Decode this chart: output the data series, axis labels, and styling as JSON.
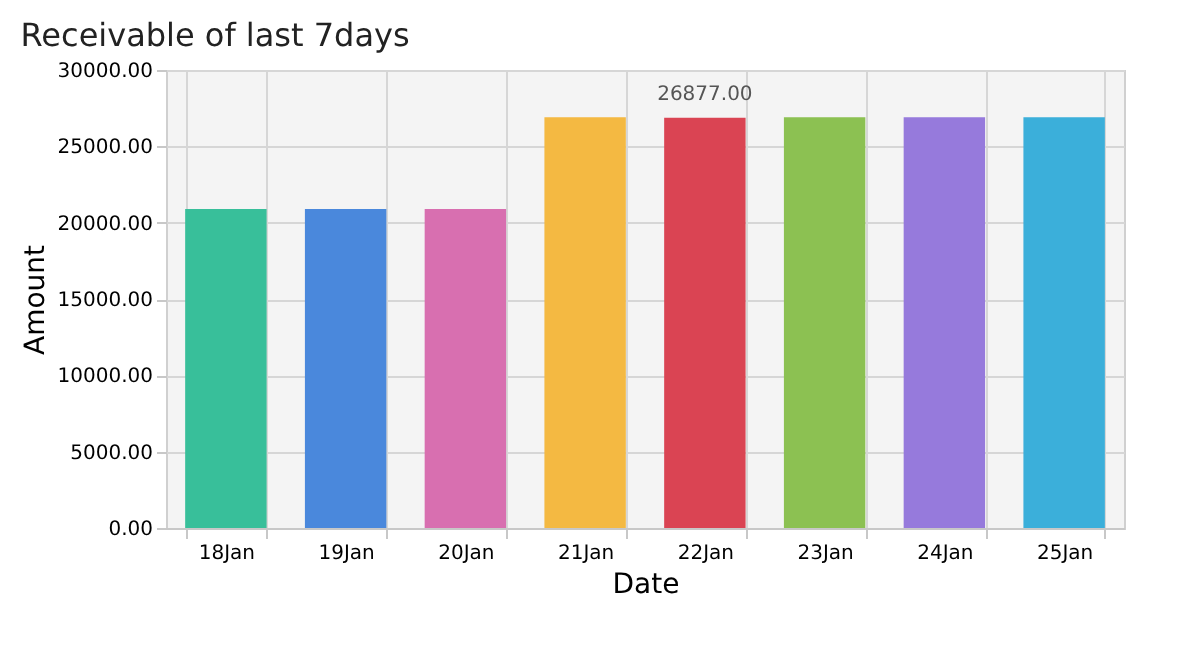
{
  "chart_data": {
    "type": "bar",
    "title": "Receivable of last 7days",
    "xlabel": "Date",
    "ylabel": "Amount",
    "categories": [
      "18Jan",
      "19Jan",
      "20Jan",
      "21Jan",
      "22Jan",
      "23Jan",
      "24Jan",
      "25Jan"
    ],
    "values": [
      20900,
      20900,
      20900,
      26900,
      26877,
      26900,
      26900,
      26900
    ],
    "colors": [
      "#38bf9a",
      "#4a88dc",
      "#d86fb0",
      "#f4b942",
      "#da4453",
      "#8cc152",
      "#967adc",
      "#3bafda"
    ],
    "value_labels": [
      null,
      null,
      null,
      null,
      "26877.00",
      null,
      null,
      null
    ],
    "ylim": [
      0,
      30000
    ],
    "yticks": [
      {
        "value": 0,
        "label": "0.00"
      },
      {
        "value": 5000,
        "label": "5000.00"
      },
      {
        "value": 10000,
        "label": "10000.00"
      },
      {
        "value": 15000,
        "label": "15000.00"
      },
      {
        "value": 20000,
        "label": "20000.00"
      },
      {
        "value": 25000,
        "label": "25000.00"
      },
      {
        "value": 30000,
        "label": "30000.00"
      }
    ],
    "grid": true,
    "legend": false
  }
}
